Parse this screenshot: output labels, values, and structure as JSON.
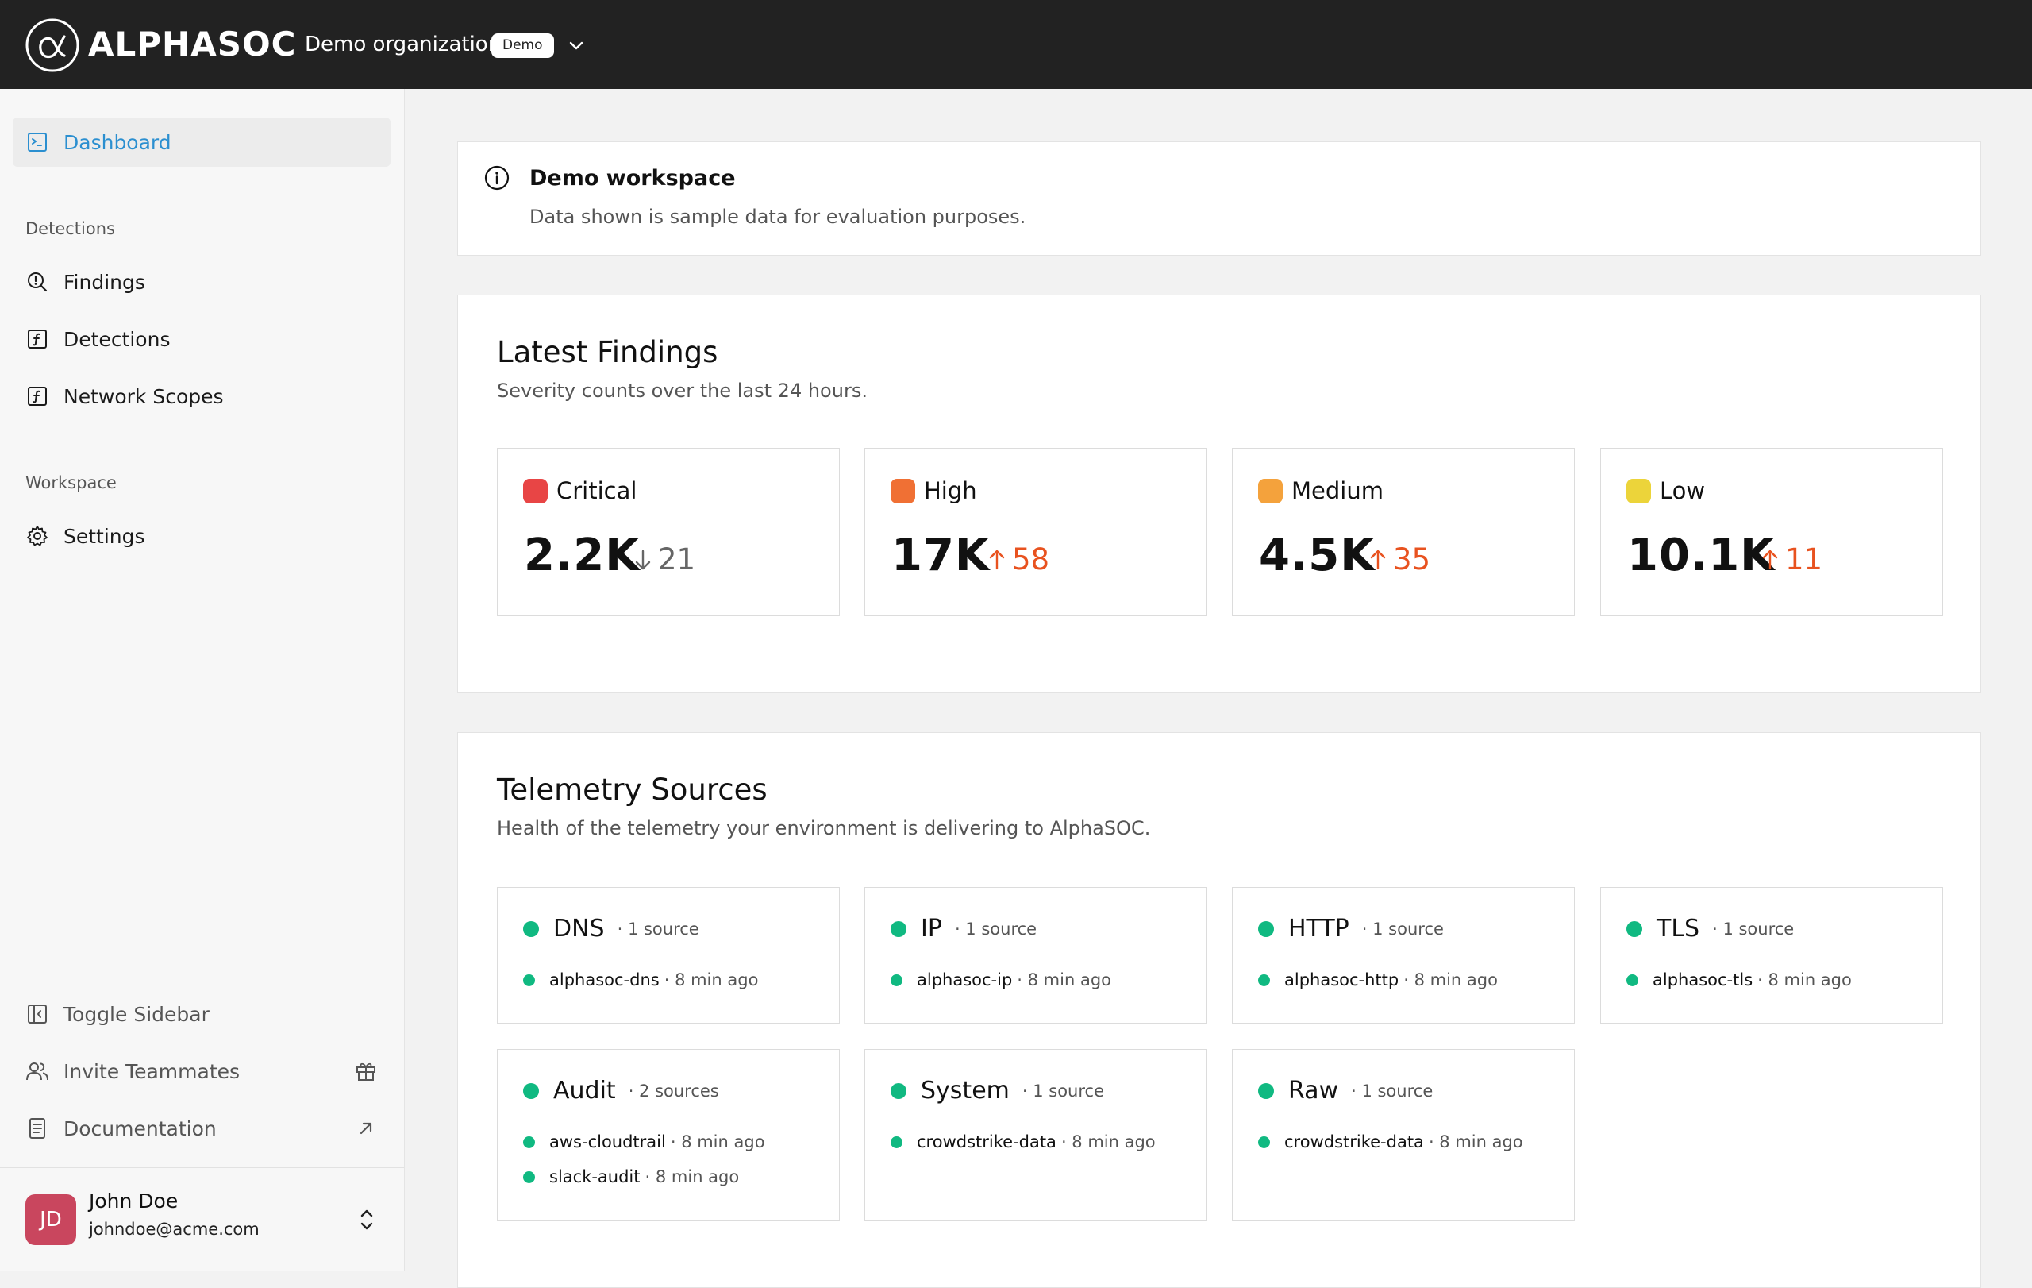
{
  "topbar": {
    "brand": "ALPHASOC",
    "org_name": "Demo organization",
    "org_badge": "Demo",
    "icons": {
      "logo": "alpha-logo-icon",
      "org_menu": "chevron-down-icon"
    }
  },
  "sidebar": {
    "items": [
      {
        "label": "Dashboard",
        "icon": "dashboard-icon",
        "active": true
      },
      {
        "label": "Findings",
        "icon": "findings-icon"
      },
      {
        "label": "Detections",
        "icon": "function-icon"
      },
      {
        "label": "Network Scopes",
        "icon": "function-icon"
      },
      {
        "label": "Settings",
        "icon": "gear-icon"
      }
    ],
    "sections": {
      "detections": "Detections",
      "workspace": "Workspace"
    },
    "bottom": [
      {
        "label": "Toggle Sidebar",
        "icon": "sidebar-toggle-icon"
      },
      {
        "label": "Invite Teammates",
        "icon": "users-icon",
        "trail_icon": "gift-icon"
      },
      {
        "label": "Documentation",
        "icon": "document-icon",
        "trail_icon": "external-arrow-icon"
      }
    ],
    "user": {
      "initials": "JD",
      "name": "John Doe",
      "email": "johndoe@acme.com",
      "avatar_color": "#c9465e"
    }
  },
  "info": {
    "title": "Demo workspace",
    "text": "Data shown is sample data for evaluation purposes."
  },
  "findings": {
    "title": "Latest Findings",
    "subtitle": "Severity counts over the last 24 hours.",
    "cards": [
      {
        "severity": "Critical",
        "color": "#e84545",
        "value": "2.2K",
        "delta": "21",
        "direction": "down"
      },
      {
        "severity": "High",
        "color": "#f07034",
        "value": "17K",
        "delta": "58",
        "direction": "up"
      },
      {
        "severity": "Medium",
        "color": "#f4a23c",
        "value": "4.5K",
        "delta": "35",
        "direction": "up"
      },
      {
        "severity": "Low",
        "color": "#ecd43a",
        "value": "10.1K",
        "delta": "11",
        "direction": "up"
      }
    ]
  },
  "telemetry": {
    "title": "Telemetry Sources",
    "subtitle": "Health of the telemetry your environment is delivering to AlphaSOC.",
    "status_color": "#10b981",
    "cards": [
      {
        "name": "DNS",
        "count": "· 1 source",
        "sources": [
          {
            "name": "alphasoc-dns",
            "time": "· 8 min ago"
          }
        ]
      },
      {
        "name": "IP",
        "count": "· 1 source",
        "sources": [
          {
            "name": "alphasoc-ip",
            "time": "· 8 min ago"
          }
        ]
      },
      {
        "name": "HTTP",
        "count": "· 1 source",
        "sources": [
          {
            "name": "alphasoc-http",
            "time": "· 8 min ago"
          }
        ]
      },
      {
        "name": "TLS",
        "count": "· 1 source",
        "sources": [
          {
            "name": "alphasoc-tls",
            "time": "· 8 min ago"
          }
        ]
      },
      {
        "name": "Audit",
        "count": "· 2 sources",
        "sources": [
          {
            "name": "aws-cloudtrail",
            "time": "· 8 min ago"
          },
          {
            "name": "slack-audit",
            "time": "· 8 min ago"
          }
        ]
      },
      {
        "name": "System",
        "count": "· 1 source",
        "sources": [
          {
            "name": "crowdstrike-data",
            "time": "· 8 min ago"
          }
        ]
      },
      {
        "name": "Raw",
        "count": "· 1 source",
        "sources": [
          {
            "name": "crowdstrike-data",
            "time": "· 8 min ago"
          }
        ]
      }
    ]
  }
}
